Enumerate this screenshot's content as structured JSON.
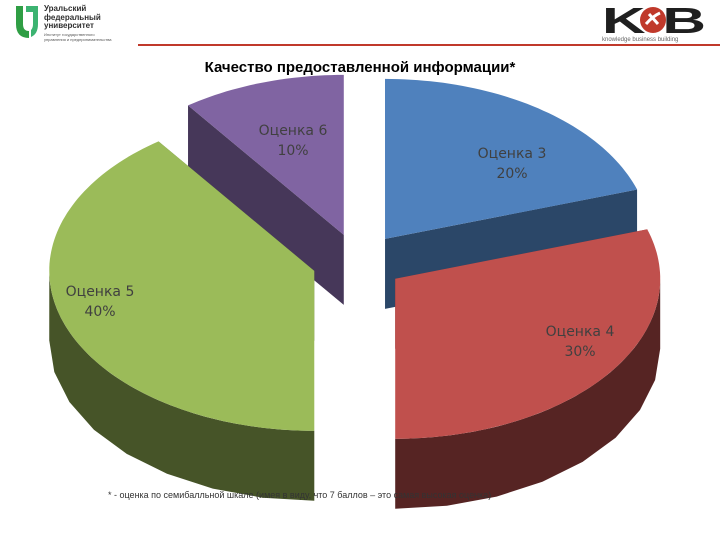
{
  "header": {
    "university_lines": "Уральский\nфедеральный\nуниверситет",
    "university_sub": "Институт государственного\nуправления и предпринимательства",
    "kb_logo_text": "KCB",
    "kb_caption": "knowledge business building"
  },
  "colors": {
    "accent_red": "#c0392b",
    "slice_3": "#4f81bd",
    "slice_4": "#c0504d",
    "slice_5": "#9bbb59",
    "slice_6": "#8064a2"
  },
  "chart_data": {
    "type": "pie",
    "style": "3d-exploded",
    "title": "Качество предоставленной информации*",
    "categories": [
      "Оценка 3",
      "Оценка 4",
      "Оценка 5",
      "Оценка 6"
    ],
    "values": [
      20,
      30,
      40,
      10
    ],
    "labels": [
      {
        "name": "Оценка 3",
        "value": "20%"
      },
      {
        "name": "Оценка 4",
        "value": "30%"
      },
      {
        "name": "Оценка 5",
        "value": "40%"
      },
      {
        "name": "Оценка 6",
        "value": "10%"
      }
    ],
    "footnote": "* - оценка по семибалльной шкале (имея в виду, что 7 баллов – это самая высокая оценка)"
  }
}
